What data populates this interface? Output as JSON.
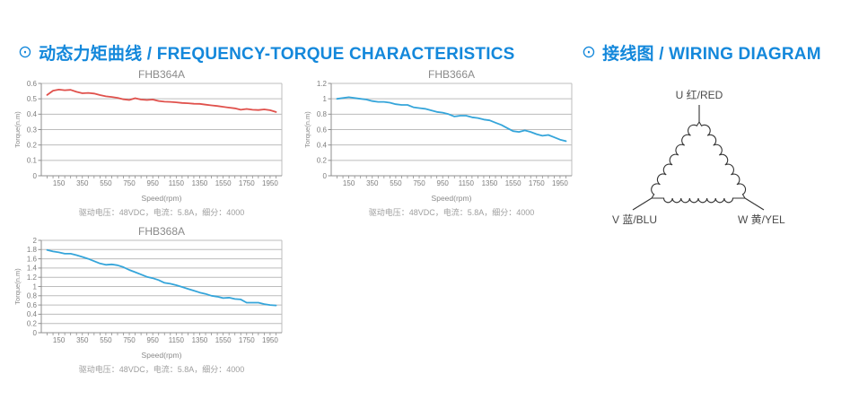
{
  "page": {
    "background": "#ffffff",
    "accent_blue": "#1488db"
  },
  "headers": {
    "charts": {
      "bullet": "⊙",
      "title": "动态力矩曲线 / FREQUENCY-TORQUE CHARACTERISTICS"
    },
    "wiring": {
      "bullet": "⊙",
      "title": "接线图 / WIRING DIAGRAM"
    }
  },
  "chart_data": [
    {
      "type": "line",
      "title": "FHB364A",
      "xlabel": "Speed(rpm)",
      "ylabel": "Torque(n.m)",
      "caption": "驱动电压：48VDC，电流：5.8A，细分：4000",
      "line_color": "#e0514c",
      "grid": true,
      "legend": "none",
      "xlim": [
        0,
        2050
      ],
      "ylim": [
        0,
        0.6
      ],
      "ytick_step": 0.1,
      "xtick_labels": [
        150,
        350,
        550,
        750,
        950,
        1150,
        1350,
        1550,
        1750,
        1950
      ],
      "xtick_minor_step": 50,
      "x": [
        50,
        100,
        150,
        200,
        250,
        300,
        350,
        400,
        450,
        500,
        550,
        600,
        650,
        700,
        750,
        800,
        850,
        900,
        950,
        1000,
        1050,
        1100,
        1150,
        1200,
        1250,
        1300,
        1350,
        1400,
        1450,
        1500,
        1550,
        1600,
        1650,
        1700,
        1750,
        1800,
        1850,
        1900,
        1950,
        2000
      ],
      "y": [
        0.525,
        0.553,
        0.56,
        0.556,
        0.558,
        0.545,
        0.536,
        0.538,
        0.534,
        0.524,
        0.516,
        0.512,
        0.506,
        0.497,
        0.492,
        0.504,
        0.495,
        0.492,
        0.495,
        0.486,
        0.481,
        0.48,
        0.477,
        0.473,
        0.471,
        0.468,
        0.467,
        0.462,
        0.457,
        0.453,
        0.448,
        0.443,
        0.438,
        0.429,
        0.434,
        0.429,
        0.427,
        0.431,
        0.426,
        0.414
      ]
    },
    {
      "type": "line",
      "title": "FHB366A",
      "xlabel": "Speed(rpm)",
      "ylabel": "Torque(n.m)",
      "caption": "驱动电压：48VDC，电流：5.8A，细分：4000",
      "line_color": "#35a5da",
      "grid": true,
      "legend": "none",
      "xlim": [
        0,
        2050
      ],
      "ylim": [
        0,
        1.2
      ],
      "ytick_step": 0.2,
      "xtick_labels": [
        150,
        350,
        550,
        750,
        950,
        1150,
        1350,
        1550,
        1750,
        1950
      ],
      "xtick_minor_step": 50,
      "x": [
        50,
        100,
        150,
        200,
        250,
        300,
        350,
        400,
        450,
        500,
        550,
        600,
        650,
        700,
        750,
        800,
        850,
        900,
        950,
        1000,
        1050,
        1100,
        1150,
        1200,
        1250,
        1300,
        1350,
        1400,
        1450,
        1500,
        1550,
        1600,
        1650,
        1700,
        1750,
        1800,
        1850,
        1900,
        1950,
        2000
      ],
      "y": [
        1.0,
        1.01,
        1.02,
        1.01,
        1.0,
        0.99,
        0.97,
        0.96,
        0.96,
        0.95,
        0.93,
        0.92,
        0.92,
        0.89,
        0.88,
        0.87,
        0.85,
        0.83,
        0.82,
        0.8,
        0.77,
        0.78,
        0.78,
        0.76,
        0.75,
        0.73,
        0.72,
        0.69,
        0.66,
        0.62,
        0.58,
        0.57,
        0.59,
        0.57,
        0.54,
        0.52,
        0.53,
        0.5,
        0.47,
        0.45
      ]
    },
    {
      "type": "line",
      "title": "FHB368A",
      "xlabel": "Speed(rpm)",
      "ylabel": "Torque(n.m)",
      "caption": "驱动电压：48VDC，电流：5.8A，细分：4000",
      "line_color": "#35a5da",
      "grid": true,
      "legend": "none",
      "xlim": [
        0,
        2050
      ],
      "ylim": [
        0,
        2
      ],
      "ytick_step": 0.2,
      "xtick_labels": [
        150,
        350,
        550,
        750,
        950,
        1150,
        1350,
        1550,
        1750,
        1950
      ],
      "xtick_minor_step": 50,
      "x": [
        50,
        100,
        150,
        200,
        250,
        300,
        350,
        400,
        450,
        500,
        550,
        600,
        650,
        700,
        750,
        800,
        850,
        900,
        950,
        1000,
        1050,
        1100,
        1150,
        1200,
        1250,
        1300,
        1350,
        1400,
        1450,
        1500,
        1550,
        1600,
        1650,
        1700,
        1750,
        1800,
        1850,
        1900,
        1950,
        2000
      ],
      "y": [
        1.79,
        1.76,
        1.74,
        1.71,
        1.71,
        1.68,
        1.64,
        1.6,
        1.55,
        1.5,
        1.47,
        1.48,
        1.46,
        1.42,
        1.36,
        1.31,
        1.26,
        1.21,
        1.18,
        1.14,
        1.08,
        1.06,
        1.03,
        0.99,
        0.95,
        0.91,
        0.87,
        0.84,
        0.8,
        0.78,
        0.75,
        0.76,
        0.73,
        0.72,
        0.65,
        0.65,
        0.65,
        0.62,
        0.6,
        0.59
      ]
    }
  ],
  "wiring_diagram": {
    "connection": "delta",
    "line_color": "#333333",
    "label_color": "#4a4a4a",
    "terminals": [
      {
        "terminal": "U",
        "label": "U 红/RED",
        "position": "top"
      },
      {
        "terminal": "V",
        "label": "V 蓝/BLU",
        "position": "bottom-left"
      },
      {
        "terminal": "W",
        "label": "W 黄/YEL",
        "position": "bottom-right"
      }
    ]
  },
  "chart_styles": {
    "grid_color": "#bcbcbc",
    "axis_color": "#8f8f8f",
    "title_color": "#8a8a8a",
    "tick_label_color": "#7d7d7d",
    "caption_color": "#9e9e9e"
  }
}
